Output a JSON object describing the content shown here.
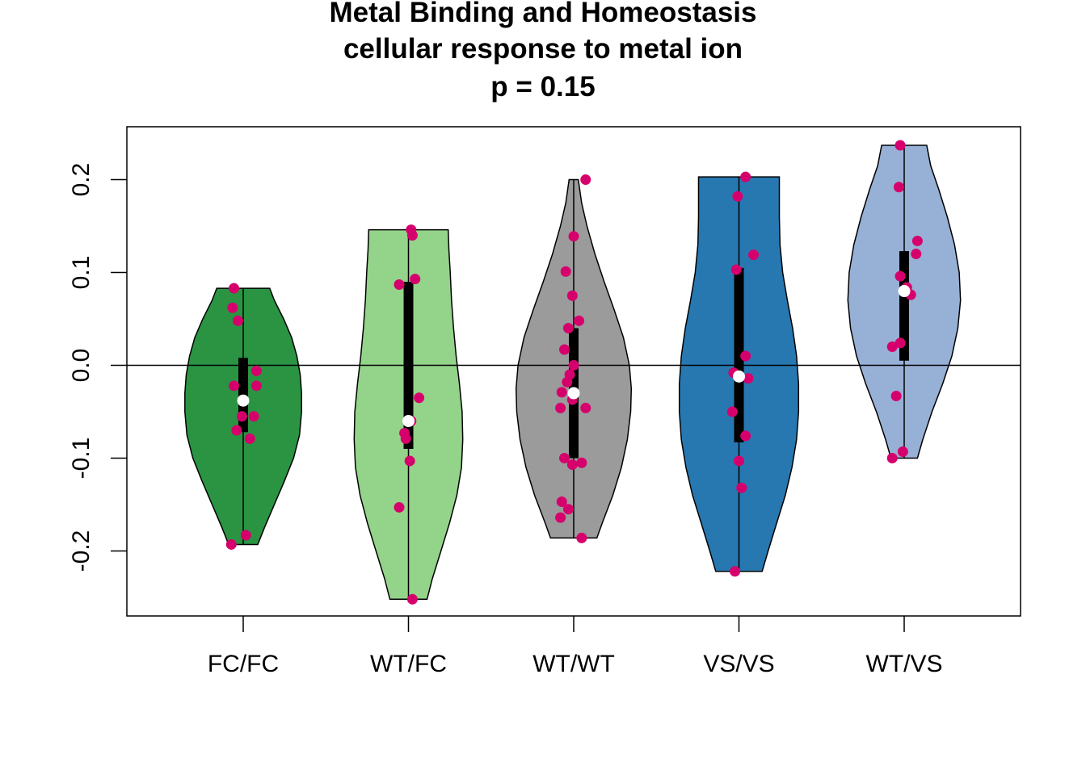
{
  "chart_data": {
    "type": "violin",
    "title": [
      "Metal Binding and Homeostasis",
      "cellular response to metal ion",
      "p = 0.15"
    ],
    "xlabel": "",
    "ylabel": "",
    "ylim": [
      -0.27,
      0.257
    ],
    "yticks": [
      0.2,
      0.1,
      0.0,
      -0.1,
      -0.2
    ],
    "ytick_labels": [
      "0.2",
      "0.1",
      "0.0",
      "-0.1",
      "-0.2"
    ],
    "reference_line_y": 0.0,
    "point_color": "#d6006c",
    "groups": [
      {
        "name": "FC/FC",
        "color": "#2a9443",
        "min": -0.193,
        "max": 0.083,
        "q1": -0.072,
        "q3": 0.008,
        "median": -0.038,
        "density": [
          [
            -0.193,
            0.22
          ],
          [
            -0.175,
            0.32
          ],
          [
            -0.15,
            0.47
          ],
          [
            -0.125,
            0.62
          ],
          [
            -0.1,
            0.76
          ],
          [
            -0.075,
            0.85
          ],
          [
            -0.05,
            0.88
          ],
          [
            -0.03,
            0.88
          ],
          [
            -0.01,
            0.86
          ],
          [
            0.01,
            0.81
          ],
          [
            0.03,
            0.73
          ],
          [
            0.05,
            0.61
          ],
          [
            0.07,
            0.47
          ],
          [
            0.083,
            0.4
          ]
        ],
        "points": [
          [
            -0.07,
            0.083
          ],
          [
            -0.08,
            0.062
          ],
          [
            -0.04,
            0.048
          ],
          [
            0.1,
            -0.006
          ],
          [
            -0.07,
            -0.022
          ],
          [
            0.1,
            -0.022
          ],
          [
            -0.01,
            -0.055
          ],
          [
            0.08,
            -0.055
          ],
          [
            -0.05,
            -0.07
          ],
          [
            0.05,
            -0.079
          ],
          [
            0.02,
            -0.183
          ],
          [
            -0.09,
            -0.193
          ]
        ]
      },
      {
        "name": "WT/FC",
        "color": "#94d38a",
        "min": -0.252,
        "max": 0.146,
        "q1": -0.09,
        "q3": 0.09,
        "median": -0.06,
        "density": [
          [
            -0.252,
            0.28
          ],
          [
            -0.23,
            0.36
          ],
          [
            -0.2,
            0.49
          ],
          [
            -0.17,
            0.62
          ],
          [
            -0.14,
            0.73
          ],
          [
            -0.11,
            0.8
          ],
          [
            -0.08,
            0.82
          ],
          [
            -0.05,
            0.81
          ],
          [
            -0.02,
            0.77
          ],
          [
            0.01,
            0.72
          ],
          [
            0.04,
            0.68
          ],
          [
            0.07,
            0.65
          ],
          [
            0.1,
            0.63
          ],
          [
            0.125,
            0.61
          ],
          [
            0.146,
            0.6
          ]
        ],
        "points": [
          [
            0.02,
            0.146
          ],
          [
            0.03,
            0.14
          ],
          [
            -0.07,
            0.087
          ],
          [
            0.05,
            0.093
          ],
          [
            0.08,
            -0.035
          ],
          [
            0.02,
            -0.06
          ],
          [
            -0.03,
            -0.073
          ],
          [
            -0.02,
            -0.079
          ],
          [
            0.01,
            -0.103
          ],
          [
            -0.07,
            -0.153
          ],
          [
            0.03,
            -0.252
          ]
        ]
      },
      {
        "name": "WT/WT",
        "color": "#9b9b9b",
        "min": -0.186,
        "max": 0.2,
        "q1": -0.1,
        "q3": 0.04,
        "median": -0.03,
        "density": [
          [
            -0.186,
            0.35
          ],
          [
            -0.17,
            0.43
          ],
          [
            -0.14,
            0.59
          ],
          [
            -0.11,
            0.72
          ],
          [
            -0.08,
            0.81
          ],
          [
            -0.05,
            0.86
          ],
          [
            -0.025,
            0.87
          ],
          [
            0.0,
            0.84
          ],
          [
            0.03,
            0.75
          ],
          [
            0.06,
            0.61
          ],
          [
            0.09,
            0.46
          ],
          [
            0.12,
            0.32
          ],
          [
            0.15,
            0.2
          ],
          [
            0.175,
            0.12
          ],
          [
            0.2,
            0.07
          ]
        ],
        "points": [
          [
            0.09,
            0.2
          ],
          [
            0.0,
            0.139
          ],
          [
            -0.06,
            0.101
          ],
          [
            -0.01,
            0.075
          ],
          [
            -0.04,
            0.04
          ],
          [
            0.04,
            0.048
          ],
          [
            -0.07,
            0.017
          ],
          [
            0.0,
            0.0
          ],
          [
            -0.03,
            -0.01
          ],
          [
            -0.05,
            -0.018
          ],
          [
            -0.09,
            -0.029
          ],
          [
            -0.01,
            -0.037
          ],
          [
            -0.1,
            -0.046
          ],
          [
            0.09,
            -0.046
          ],
          [
            -0.07,
            -0.1
          ],
          [
            -0.01,
            -0.107
          ],
          [
            0.06,
            -0.105
          ],
          [
            -0.09,
            -0.147
          ],
          [
            -0.04,
            -0.155
          ],
          [
            -0.1,
            -0.164
          ],
          [
            0.06,
            -0.186
          ]
        ]
      },
      {
        "name": "VS/VS",
        "color": "#2778b1",
        "min": -0.222,
        "max": 0.203,
        "q1": -0.083,
        "q3": 0.105,
        "median": -0.012,
        "density": [
          [
            -0.222,
            0.35
          ],
          [
            -0.2,
            0.44
          ],
          [
            -0.17,
            0.57
          ],
          [
            -0.14,
            0.7
          ],
          [
            -0.11,
            0.8
          ],
          [
            -0.08,
            0.87
          ],
          [
            -0.05,
            0.9
          ],
          [
            -0.02,
            0.9
          ],
          [
            0.01,
            0.87
          ],
          [
            0.04,
            0.81
          ],
          [
            0.07,
            0.73
          ],
          [
            0.1,
            0.66
          ],
          [
            0.13,
            0.62
          ],
          [
            0.16,
            0.61
          ],
          [
            0.203,
            0.61
          ]
        ],
        "points": [
          [
            0.05,
            0.203
          ],
          [
            -0.01,
            0.182
          ],
          [
            0.11,
            0.119
          ],
          [
            -0.02,
            0.103
          ],
          [
            0.05,
            0.01
          ],
          [
            -0.04,
            -0.008
          ],
          [
            0.07,
            -0.014
          ],
          [
            -0.05,
            -0.05
          ],
          [
            0.05,
            -0.076
          ],
          [
            0.0,
            -0.103
          ],
          [
            0.02,
            -0.132
          ],
          [
            -0.03,
            -0.222
          ]
        ]
      },
      {
        "name": "WT/VS",
        "color": "#97b0d6",
        "min": -0.1,
        "max": 0.237,
        "q1": 0.005,
        "q3": 0.123,
        "median": 0.08,
        "density": [
          [
            -0.1,
            0.2
          ],
          [
            -0.08,
            0.28
          ],
          [
            -0.05,
            0.42
          ],
          [
            -0.02,
            0.58
          ],
          [
            0.01,
            0.72
          ],
          [
            0.04,
            0.81
          ],
          [
            0.07,
            0.85
          ],
          [
            0.1,
            0.83
          ],
          [
            0.13,
            0.76
          ],
          [
            0.16,
            0.65
          ],
          [
            0.19,
            0.52
          ],
          [
            0.215,
            0.4
          ],
          [
            0.237,
            0.34
          ]
        ],
        "points": [
          [
            -0.03,
            0.237
          ],
          [
            -0.04,
            0.192
          ],
          [
            0.1,
            0.134
          ],
          [
            0.09,
            0.12
          ],
          [
            -0.03,
            0.096
          ],
          [
            0.02,
            0.084
          ],
          [
            0.05,
            0.076
          ],
          [
            -0.03,
            0.024
          ],
          [
            -0.09,
            0.02
          ],
          [
            -0.06,
            -0.033
          ],
          [
            -0.01,
            -0.093
          ],
          [
            -0.09,
            -0.1
          ]
        ]
      }
    ]
  }
}
